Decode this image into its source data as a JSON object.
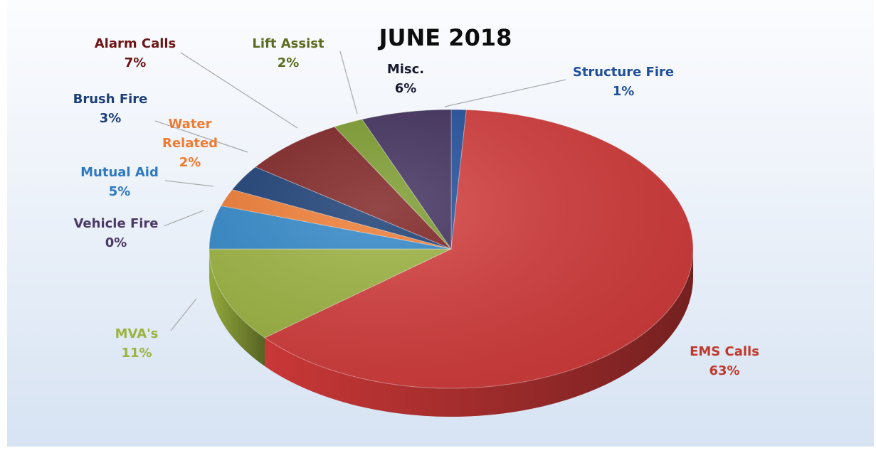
{
  "chart_data": {
    "type": "pie",
    "title": "JUNE 2018",
    "slices": [
      {
        "label": "Structure Fire",
        "value": 1,
        "value_label": "1%",
        "color": "#1f4e9c"
      },
      {
        "label": "EMS Calls",
        "value": 63,
        "value_label": "63%",
        "color": "#d43a3a"
      },
      {
        "label": "MVA's",
        "value": 11,
        "value_label": "11%",
        "color": "#9cb33f"
      },
      {
        "label": "Vehicle Fire",
        "value": 0,
        "value_label": "0%",
        "color": "#5b3d78"
      },
      {
        "label": "Mutual Aid",
        "value": 5,
        "value_label": "5%",
        "color": "#2e86c8"
      },
      {
        "label": "Water\nRelated",
        "value": 2,
        "value_label": "2%",
        "color": "#ef7a30"
      },
      {
        "label": "Brush Fire",
        "value": 3,
        "value_label": "3%",
        "color": "#163a72"
      },
      {
        "label": "Alarm Calls",
        "value": 7,
        "value_label": "7%",
        "color": "#7d1f1f"
      },
      {
        "label": "Lift Assist",
        "value": 2,
        "value_label": "2%",
        "color": "#7a9b2a"
      },
      {
        "label": "Misc.",
        "value": 6,
        "value_label": "6%",
        "color": "#3f2d5c"
      }
    ],
    "label_colors": {
      "Structure Fire": "#1f4e9c",
      "EMS Calls": "#c0392b",
      "MVA's": "#9cb33f",
      "Vehicle Fire": "#4b3a66",
      "Mutual Aid": "#2e78c0",
      "Water\nRelated": "#ef7a30",
      "Brush Fire": "#1c3f78",
      "Alarm Calls": "#6e1414",
      "Lift Assist": "#5b6b1f",
      "Misc.": "#1a1a2e"
    },
    "style": "3d-pie",
    "legend": "none"
  }
}
